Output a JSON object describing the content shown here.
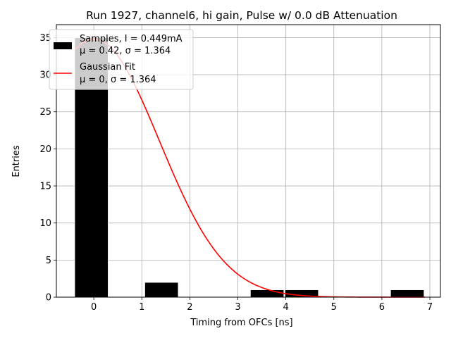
{
  "chart_data": {
    "type": "bar",
    "title": "Run 1927, channel6, hi gain, Pulse w/ 0.0 dB Attenuation",
    "xlabel": "Timing from OFCs [ns]",
    "ylabel": "Entries",
    "xlim": [
      -0.78,
      7.22
    ],
    "ylim": [
      0,
      36.75
    ],
    "xticks": [
      0,
      1,
      2,
      3,
      4,
      5,
      6,
      7
    ],
    "yticks": [
      0,
      5,
      10,
      15,
      20,
      25,
      30,
      35
    ],
    "grid": true,
    "bars": [
      {
        "x0": -0.4,
        "x1": 0.3,
        "value": 35
      },
      {
        "x0": 1.06,
        "x1": 1.76,
        "value": 2
      },
      {
        "x0": 3.26,
        "x1": 3.96,
        "value": 1
      },
      {
        "x0": 3.98,
        "x1": 4.68,
        "value": 1
      },
      {
        "x0": 6.18,
        "x1": 6.88,
        "value": 1
      }
    ],
    "gaussian_fit": {
      "mu": 0.0,
      "sigma": 1.364,
      "amplitude": 34.8,
      "x_start": -0.4,
      "x_end": 6.9
    },
    "legend": {
      "placement": "top-left",
      "entries": [
        {
          "name": "samples",
          "line1": "Samples, I = 0.449mA",
          "line2": "μ = 0.42, σ = 1.364",
          "color": "#000000",
          "kind": "bar"
        },
        {
          "name": "gaussian",
          "line1": "Gaussian Fit",
          "line2": "μ = 0, σ = 1.364",
          "color": "#ff0000",
          "kind": "line"
        }
      ]
    },
    "colors": {
      "bar": "#000000",
      "bar_edge": "#ffffff",
      "fit": "#ff0000",
      "grid": "#b0b0b0"
    }
  }
}
